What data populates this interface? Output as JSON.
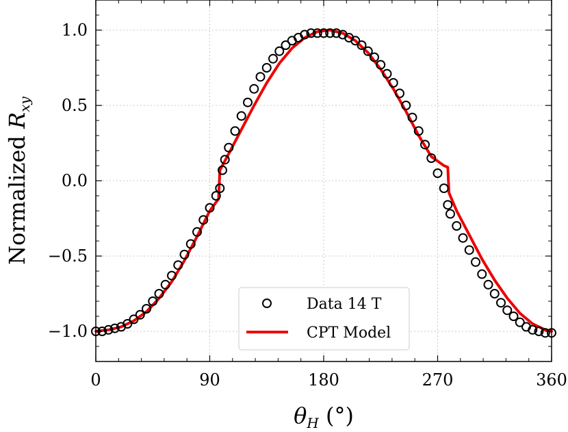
{
  "chart_data": {
    "type": "scatter",
    "title": "",
    "xlabel": "θ_H (°)",
    "ylabel": "Normalized R_xy",
    "xlim": [
      0,
      360
    ],
    "ylim": [
      -1.2,
      1.2
    ],
    "xticks": [
      0,
      90,
      180,
      270,
      360
    ],
    "xtick_labels": [
      "0",
      "90",
      "180",
      "270",
      "360"
    ],
    "yticks": [
      -1.0,
      -0.5,
      0.0,
      0.5,
      1.0
    ],
    "ytick_labels": [
      "−1.0",
      "−0.5",
      "0.0",
      "0.5",
      "1.0"
    ],
    "grid": true,
    "legend_position": "lower-center",
    "series": [
      {
        "name": "Data 14 T",
        "kind": "scatter",
        "marker": "open-circle",
        "color": "#000000",
        "x": [
          0,
          5,
          10,
          15,
          20,
          25,
          30,
          35,
          40,
          45,
          50,
          55,
          60,
          65,
          70,
          75,
          80,
          85,
          90,
          95,
          98,
          100,
          102,
          105,
          110,
          115,
          120,
          125,
          130,
          135,
          140,
          145,
          150,
          155,
          160,
          165,
          170,
          175,
          180,
          185,
          190,
          195,
          200,
          205,
          210,
          215,
          220,
          225,
          230,
          235,
          240,
          245,
          250,
          255,
          260,
          265,
          270,
          275,
          278,
          280,
          285,
          290,
          295,
          300,
          305,
          310,
          315,
          320,
          325,
          330,
          335,
          340,
          345,
          350,
          355,
          360
        ],
        "y": [
          -1.0,
          -1.0,
          -0.99,
          -0.98,
          -0.97,
          -0.95,
          -0.92,
          -0.89,
          -0.85,
          -0.8,
          -0.75,
          -0.69,
          -0.63,
          -0.56,
          -0.49,
          -0.42,
          -0.34,
          -0.26,
          -0.18,
          -0.1,
          -0.05,
          0.07,
          0.14,
          0.22,
          0.33,
          0.43,
          0.52,
          0.61,
          0.69,
          0.75,
          0.81,
          0.86,
          0.9,
          0.93,
          0.95,
          0.97,
          0.98,
          0.98,
          0.98,
          0.98,
          0.98,
          0.97,
          0.95,
          0.93,
          0.9,
          0.86,
          0.82,
          0.77,
          0.71,
          0.65,
          0.58,
          0.5,
          0.42,
          0.33,
          0.24,
          0.15,
          0.05,
          -0.05,
          -0.16,
          -0.22,
          -0.3,
          -0.38,
          -0.46,
          -0.54,
          -0.62,
          -0.69,
          -0.75,
          -0.81,
          -0.86,
          -0.9,
          -0.94,
          -0.97,
          -0.99,
          -1.0,
          -1.01,
          -1.01
        ]
      },
      {
        "name": "CPT Model",
        "kind": "line",
        "color": "#ee0000",
        "x": [
          0,
          10,
          20,
          30,
          40,
          50,
          60,
          70,
          80,
          90,
          97,
          98,
          105,
          115,
          125,
          135,
          145,
          155,
          165,
          175,
          185,
          195,
          205,
          215,
          225,
          235,
          245,
          255,
          265,
          275,
          278,
          279,
          285,
          295,
          305,
          315,
          325,
          335,
          345,
          355,
          360
        ],
        "y": [
          -1.0,
          -0.99,
          -0.97,
          -0.93,
          -0.87,
          -0.78,
          -0.67,
          -0.53,
          -0.37,
          -0.2,
          -0.12,
          0.07,
          0.18,
          0.34,
          0.5,
          0.65,
          0.78,
          0.88,
          0.95,
          0.99,
          1.0,
          0.98,
          0.93,
          0.85,
          0.74,
          0.61,
          0.46,
          0.3,
          0.16,
          0.1,
          0.09,
          -0.08,
          -0.2,
          -0.36,
          -0.52,
          -0.66,
          -0.78,
          -0.88,
          -0.95,
          -0.99,
          -1.0
        ]
      }
    ]
  }
}
